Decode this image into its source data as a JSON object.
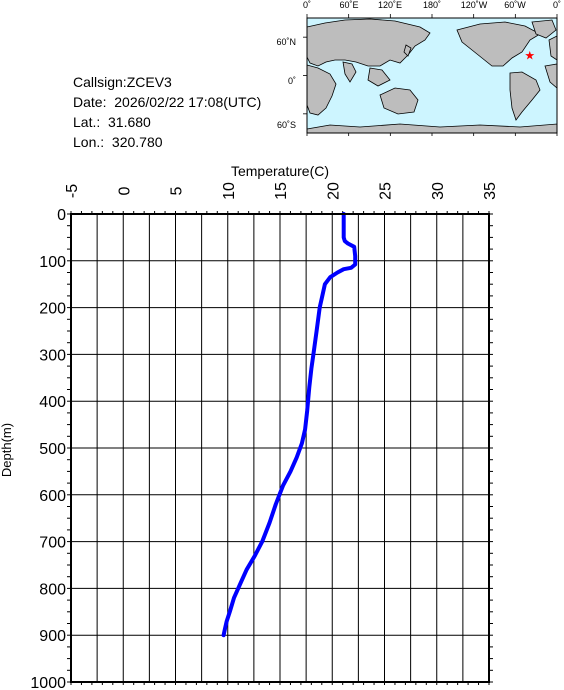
{
  "info": {
    "callsign": "Callsign:ZCEV3",
    "date": "Date:  2026/02/22 17:08(UTC)",
    "lat": "Lat.:  31.680",
    "lon": "Lon.:  320.780"
  },
  "map": {
    "top_labels": [
      "0˚",
      "60˚E",
      "120˚E",
      "180˚",
      "120˚W",
      "60˚W",
      "0˚"
    ],
    "lat_labels": [
      "60˚N",
      "0˚",
      "60˚S"
    ],
    "ocean_color": "#cdf5ff",
    "land_color": "#bdbdbd",
    "marker_color": "#ff0000",
    "marker_icon": "star-icon",
    "marker_lon": 320.78,
    "marker_lat": 31.68
  },
  "chart_data": {
    "type": "line",
    "title": "",
    "xlabel": "Temperature(C)",
    "ylabel": "Depth(m)",
    "xlim": [
      -5,
      35
    ],
    "ylim": [
      0,
      1000
    ],
    "y_inverted": true,
    "x_ticks": [
      "-5",
      "0",
      "5",
      "10",
      "15",
      "20",
      "25",
      "30",
      "35"
    ],
    "y_ticks": [
      "0",
      "100",
      "200",
      "300",
      "400",
      "500",
      "600",
      "700",
      "800",
      "900",
      "1000"
    ],
    "grid": true,
    "series": [
      {
        "color": "#0000ff",
        "x": [
          21.1,
          21.1,
          21.1,
          21.2,
          21.5,
          22.1,
          22.2,
          22.2,
          21.8,
          21.1,
          20.5,
          19.8,
          19.3,
          19.0,
          18.8,
          18.5,
          18.2,
          18.0,
          17.8,
          17.6,
          17.4,
          17.1,
          16.6,
          16.0,
          15.3,
          14.6,
          14.0,
          13.3,
          12.6,
          11.8,
          11.2,
          10.6,
          10.2,
          9.9,
          9.7,
          9.6
        ],
        "y": [
          0,
          30,
          50,
          58,
          63,
          70,
          90,
          108,
          115,
          118,
          125,
          135,
          150,
          180,
          200,
          250,
          300,
          330,
          370,
          420,
          460,
          490,
          520,
          550,
          580,
          620,
          660,
          700,
          730,
          760,
          790,
          820,
          850,
          870,
          890,
          900
        ]
      }
    ]
  }
}
